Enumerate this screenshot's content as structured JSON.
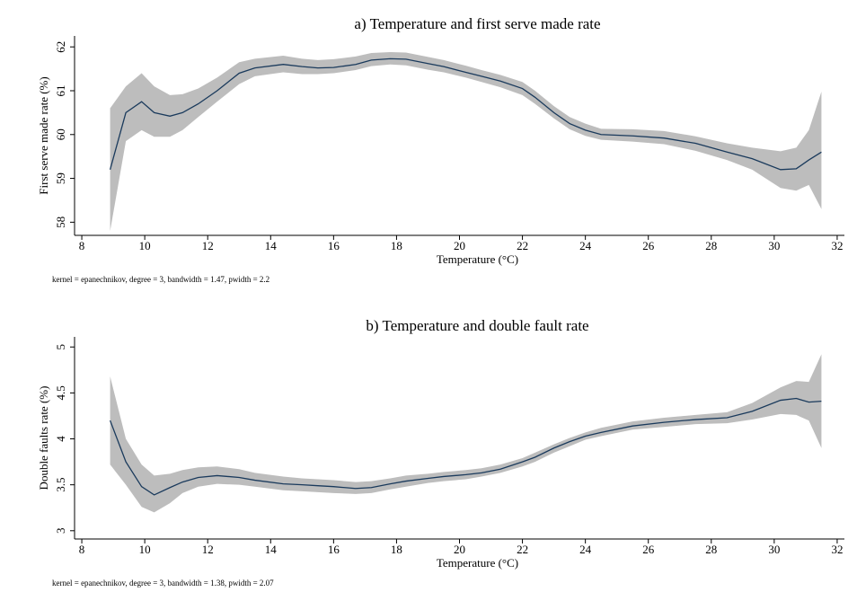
{
  "chart_data": [
    {
      "type": "line",
      "title": "a) Temperature and first serve made rate",
      "x_label": "Temperature (°C)",
      "y_label": "First serve made rate (%)",
      "note": "kernel = epanechnikov, degree = 3, bandwidth = 1.47, pwidth = 2.2",
      "x": [
        8.9,
        9.4,
        9.9,
        10.3,
        10.8,
        11.2,
        11.7,
        12.3,
        13.0,
        13.5,
        14.4,
        15.0,
        15.5,
        16.0,
        16.7,
        17.2,
        17.8,
        18.3,
        19.0,
        19.5,
        20.2,
        20.7,
        21.3,
        22.0,
        22.4,
        23.0,
        23.5,
        24.0,
        24.5,
        25.5,
        26.5,
        27.5,
        28.5,
        29.3,
        30.2,
        30.7,
        31.1,
        31.5
      ],
      "series": [
        {
          "color": "#1a3a5c",
          "band_color": "#bdbdbd",
          "values": [
            59.2,
            60.5,
            60.75,
            60.5,
            60.42,
            60.5,
            60.7,
            61.0,
            61.4,
            61.52,
            61.6,
            61.55,
            61.52,
            61.53,
            61.6,
            61.7,
            61.73,
            61.72,
            61.62,
            61.55,
            61.42,
            61.33,
            61.22,
            61.05,
            60.85,
            60.5,
            60.25,
            60.1,
            60.0,
            59.97,
            59.92,
            59.8,
            59.6,
            59.45,
            59.2,
            59.22,
            59.42,
            59.6
          ],
          "upper": [
            60.6,
            61.1,
            61.4,
            61.1,
            60.9,
            60.92,
            61.05,
            61.3,
            61.65,
            61.73,
            61.8,
            61.73,
            61.7,
            61.72,
            61.78,
            61.86,
            61.88,
            61.87,
            61.77,
            61.7,
            61.57,
            61.47,
            61.36,
            61.2,
            61.0,
            60.65,
            60.4,
            60.25,
            60.13,
            60.12,
            60.08,
            59.96,
            59.8,
            59.7,
            59.62,
            59.7,
            60.1,
            60.98
          ],
          "lower": [
            57.8,
            59.85,
            60.1,
            59.95,
            59.95,
            60.1,
            60.4,
            60.75,
            61.15,
            61.33,
            61.42,
            61.38,
            61.38,
            61.4,
            61.47,
            61.56,
            61.6,
            61.58,
            61.48,
            61.42,
            61.3,
            61.2,
            61.08,
            60.9,
            60.7,
            60.37,
            60.12,
            59.97,
            59.88,
            59.84,
            59.78,
            59.63,
            59.42,
            59.2,
            58.78,
            58.72,
            58.85,
            58.3
          ]
        }
      ],
      "xlim": [
        7.77,
        32.23
      ],
      "xticks": [
        8,
        10,
        12,
        14,
        16,
        18,
        20,
        22,
        24,
        26,
        28,
        30,
        32
      ],
      "ylim": [
        57.7,
        62.25
      ],
      "yticks": [
        58,
        59,
        60,
        61,
        62
      ]
    },
    {
      "type": "line",
      "title": "b) Temperature and double fault rate",
      "x_label": "Temperature (°C)",
      "y_label": "Double faults rate (%)",
      "note": "kernel = epanechnikov, degree = 3, bandwidth = 1.38, pwidth = 2.07",
      "x": [
        8.9,
        9.4,
        9.9,
        10.3,
        10.8,
        11.2,
        11.7,
        12.3,
        13.0,
        13.5,
        14.4,
        15.0,
        15.5,
        16.0,
        16.7,
        17.2,
        17.8,
        18.3,
        19.0,
        19.5,
        20.2,
        20.7,
        21.3,
        22.0,
        22.4,
        23.0,
        23.5,
        24.0,
        24.5,
        25.5,
        26.5,
        27.5,
        28.5,
        29.3,
        30.2,
        30.7,
        31.1,
        31.5
      ],
      "series": [
        {
          "color": "#1a3a5c",
          "band_color": "#bdbdbd",
          "values": [
            4.2,
            3.75,
            3.48,
            3.39,
            3.47,
            3.53,
            3.58,
            3.6,
            3.58,
            3.55,
            3.51,
            3.5,
            3.49,
            3.48,
            3.46,
            3.47,
            3.51,
            3.54,
            3.57,
            3.59,
            3.61,
            3.63,
            3.67,
            3.75,
            3.8,
            3.9,
            3.97,
            4.03,
            4.07,
            4.14,
            4.18,
            4.21,
            4.23,
            4.3,
            4.42,
            4.44,
            4.4,
            4.41
          ],
          "upper": [
            4.68,
            4.0,
            3.72,
            3.6,
            3.62,
            3.66,
            3.69,
            3.7,
            3.67,
            3.63,
            3.59,
            3.57,
            3.56,
            3.55,
            3.53,
            3.54,
            3.57,
            3.6,
            3.62,
            3.64,
            3.66,
            3.68,
            3.72,
            3.79,
            3.85,
            3.94,
            4.01,
            4.07,
            4.12,
            4.19,
            4.23,
            4.26,
            4.29,
            4.39,
            4.56,
            4.63,
            4.62,
            4.92
          ],
          "lower": [
            3.72,
            3.5,
            3.26,
            3.2,
            3.3,
            3.41,
            3.48,
            3.51,
            3.5,
            3.48,
            3.44,
            3.43,
            3.42,
            3.41,
            3.4,
            3.41,
            3.45,
            3.48,
            3.52,
            3.54,
            3.56,
            3.59,
            3.63,
            3.7,
            3.75,
            3.85,
            3.92,
            3.99,
            4.03,
            4.1,
            4.13,
            4.16,
            4.17,
            4.21,
            4.27,
            4.26,
            4.2,
            3.9
          ]
        }
      ],
      "xlim": [
        7.77,
        32.23
      ],
      "xticks": [
        8,
        10,
        12,
        14,
        16,
        18,
        20,
        22,
        24,
        26,
        28,
        30,
        32
      ],
      "ylim": [
        2.91,
        5.11
      ],
      "yticks": [
        3,
        3.5,
        4,
        4.5,
        5
      ]
    }
  ]
}
